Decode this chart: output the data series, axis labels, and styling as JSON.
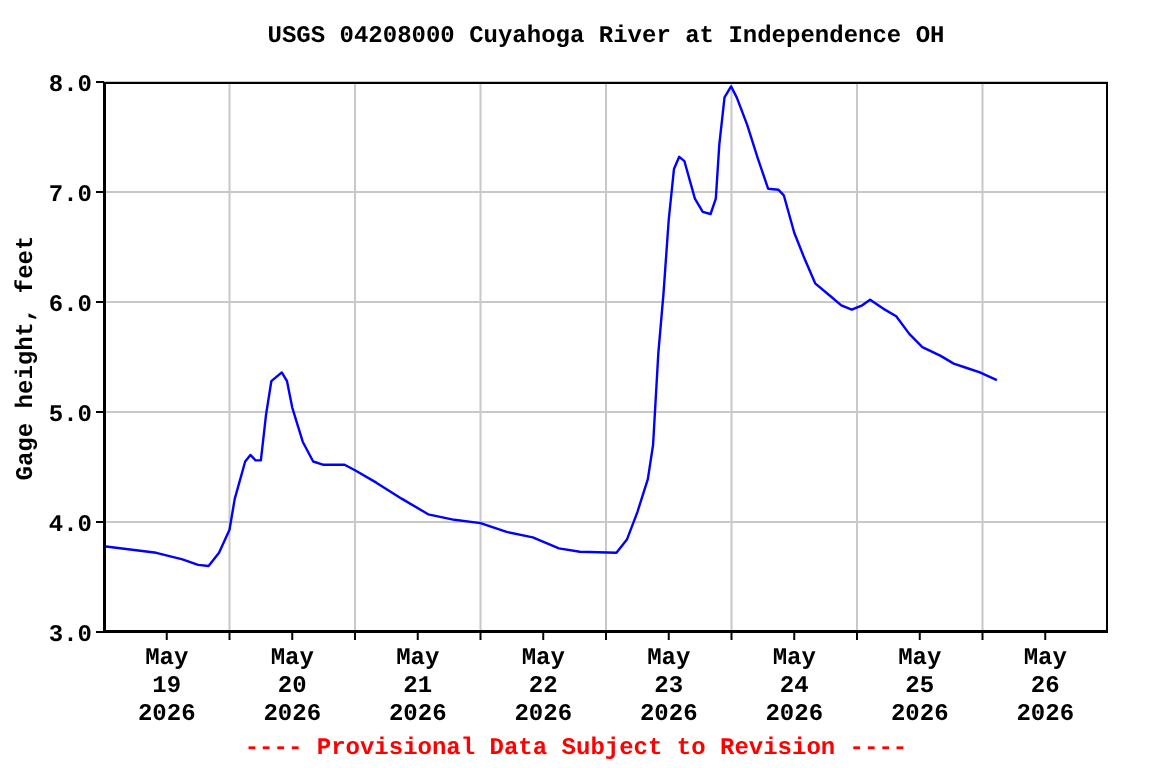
{
  "chart_data": {
    "type": "line",
    "title": "USGS 04208000 Cuyahoga River at Independence OH",
    "ylabel": "Gage height, feet",
    "annotations": [
      "---- Provisional Data Subject to Revision ----"
    ],
    "x": [
      "2026-05-19T00:00",
      "2026-05-19T10:00",
      "2026-05-19T15:00",
      "2026-05-19T18:00",
      "2026-05-19T20:00",
      "2026-05-19T22:00",
      "2026-05-20T00:00",
      "2026-05-20T01:00",
      "2026-05-20T03:00",
      "2026-05-20T04:00",
      "2026-05-20T05:00",
      "2026-05-20T06:00",
      "2026-05-20T07:00",
      "2026-05-20T08:00",
      "2026-05-20T10:00",
      "2026-05-20T11:00",
      "2026-05-20T12:00",
      "2026-05-20T14:00",
      "2026-05-20T16:00",
      "2026-05-20T18:00",
      "2026-05-20T22:00",
      "2026-05-21T00:00",
      "2026-05-21T04:00",
      "2026-05-21T09:00",
      "2026-05-21T14:00",
      "2026-05-21T19:00",
      "2026-05-22T00:00",
      "2026-05-22T05:00",
      "2026-05-22T10:00",
      "2026-05-22T15:00",
      "2026-05-22T19:00",
      "2026-05-23T02:00",
      "2026-05-23T04:00",
      "2026-05-23T06:00",
      "2026-05-23T08:00",
      "2026-05-23T09:00",
      "2026-05-23T10:00",
      "2026-05-23T11:00",
      "2026-05-23T12:00",
      "2026-05-23T13:00",
      "2026-05-23T14:00",
      "2026-05-23T15:00",
      "2026-05-23T17:00",
      "2026-05-23T18:30",
      "2026-05-23T20:00",
      "2026-05-23T21:00",
      "2026-05-23T21:40",
      "2026-05-23T22:40",
      "2026-05-23T23:55",
      "2026-05-24T01:00",
      "2026-05-24T03:00",
      "2026-05-24T05:00",
      "2026-05-24T07:00",
      "2026-05-24T09:00",
      "2026-05-24T10:00",
      "2026-05-24T12:00",
      "2026-05-24T14:00",
      "2026-05-24T16:00",
      "2026-05-24T19:00",
      "2026-05-24T21:00",
      "2026-05-24T23:00",
      "2026-05-25T01:00",
      "2026-05-25T02:30",
      "2026-05-25T05:00",
      "2026-05-25T07:30",
      "2026-05-25T10:00",
      "2026-05-25T12:30",
      "2026-05-25T16:00",
      "2026-05-25T18:30",
      "2026-05-25T21:00",
      "2026-05-25T23:30",
      "2026-05-26T02:45"
    ],
    "series": [
      {
        "color": "#0000ff",
        "values": [
          3.78,
          3.72,
          3.66,
          3.61,
          3.6,
          3.72,
          3.93,
          4.21,
          4.55,
          4.61,
          4.56,
          4.56,
          4.98,
          5.28,
          5.36,
          5.28,
          5.04,
          4.73,
          4.55,
          4.52,
          4.52,
          4.47,
          4.36,
          4.21,
          4.07,
          4.02,
          3.99,
          3.91,
          3.86,
          3.76,
          3.73,
          3.72,
          3.84,
          4.09,
          4.39,
          4.7,
          5.53,
          6.08,
          6.75,
          7.21,
          7.32,
          7.28,
          6.94,
          6.82,
          6.8,
          6.94,
          7.43,
          7.86,
          7.96,
          7.86,
          7.61,
          7.31,
          7.03,
          7.02,
          6.97,
          6.63,
          6.39,
          6.17,
          6.05,
          5.97,
          5.93,
          5.97,
          6.02,
          5.94,
          5.87,
          5.71,
          5.59,
          5.51,
          5.44,
          5.4,
          5.36,
          5.29
        ]
      }
    ],
    "xlim": [
      "2026-05-19T00:00",
      "2026-05-27T00:00"
    ],
    "xticks": [
      {
        "value": "2026-05-19T12:00",
        "label": "May\n19\n2026"
      },
      {
        "value": "2026-05-20T00:00",
        "label": null
      },
      {
        "value": "2026-05-20T12:00",
        "label": "May\n20\n2026"
      },
      {
        "value": "2026-05-21T00:00",
        "label": null
      },
      {
        "value": "2026-05-21T12:00",
        "label": "May\n21\n2026"
      },
      {
        "value": "2026-05-22T00:00",
        "label": null
      },
      {
        "value": "2026-05-22T12:00",
        "label": "May\n22\n2026"
      },
      {
        "value": "2026-05-23T00:00",
        "label": null
      },
      {
        "value": "2026-05-23T12:00",
        "label": "May\n23\n2026"
      },
      {
        "value": "2026-05-24T00:00",
        "label": null
      },
      {
        "value": "2026-05-24T12:00",
        "label": "May\n24\n2026"
      },
      {
        "value": "2026-05-25T00:00",
        "label": null
      },
      {
        "value": "2026-05-25T12:00",
        "label": "May\n25\n2026"
      },
      {
        "value": "2026-05-26T00:00",
        "label": null
      },
      {
        "value": "2026-05-26T12:00",
        "label": "May\n26\n2026"
      }
    ],
    "ylim": [
      3,
      8
    ],
    "yticks": [
      {
        "value": 3,
        "label": "3.0"
      },
      {
        "value": 4,
        "label": "4.0"
      },
      {
        "value": 5,
        "label": "5.0"
      },
      {
        "value": 6,
        "label": "6.0"
      },
      {
        "value": 7,
        "label": "7.0"
      },
      {
        "value": 8,
        "label": "8.0"
      }
    ],
    "grid": true
  }
}
